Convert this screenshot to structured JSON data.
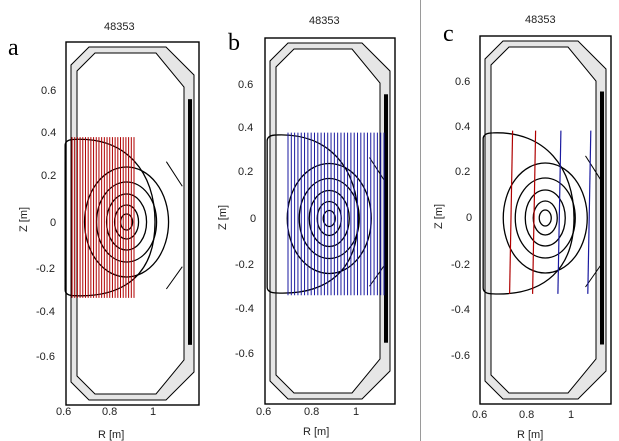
{
  "panels": [
    {
      "letter": "a",
      "shot": "48353",
      "ylabel": "Z [m]",
      "xlabel": "R [m]",
      "y_ticks": [
        "0.6",
        "0.4",
        "0.2",
        "0",
        "-0.2",
        "-0.4",
        "-0.6"
      ],
      "x_ticks": [
        "0.6",
        "0.8",
        "1"
      ],
      "chord_color": "#b00000",
      "chord_count": 24
    },
    {
      "letter": "b",
      "shot": "48353",
      "ylabel": "Z [m]",
      "xlabel": "R [m]",
      "y_ticks": [
        "0.6",
        "0.4",
        "0.2",
        "0",
        "-0.2",
        "-0.4",
        "-0.6"
      ],
      "x_ticks": [
        "0.6",
        "0.8",
        "1"
      ],
      "chord_color": "#1a1aa0",
      "chord_count": 30
    },
    {
      "letter": "c",
      "shot": "48353",
      "ylabel": "Z [m]",
      "xlabel": "R [m]",
      "y_ticks": [
        "0.6",
        "0.4",
        "0.2",
        "0",
        "-0.2",
        "-0.4",
        "-0.6"
      ],
      "x_ticks": [
        "0.6",
        "0.8",
        "1"
      ],
      "chords": [
        {
          "color": "#b00000",
          "r": 0.72
        },
        {
          "color": "#b00000",
          "r": 0.82
        },
        {
          "color": "#1a1aa0",
          "r": 0.93
        },
        {
          "color": "#1a1aa0",
          "r": 1.06
        }
      ]
    }
  ]
}
